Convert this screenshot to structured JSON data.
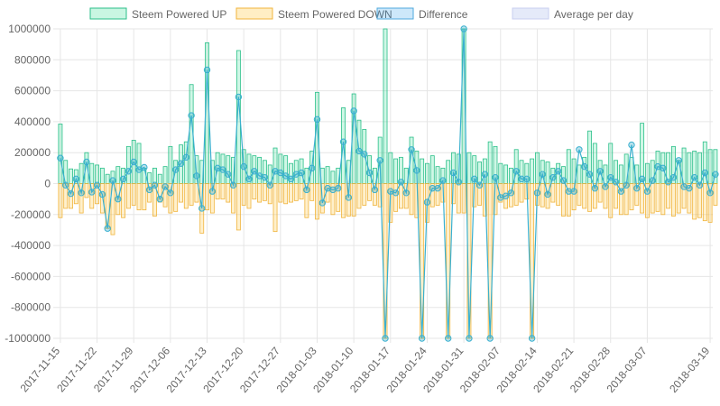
{
  "chart_data": {
    "type": "bar",
    "legend": [
      {
        "label": "Steem Powered UP",
        "fill": "rgba(38,220,140,0.25)",
        "stroke": "#2bbf89"
      },
      {
        "label": "Steem Powered DOWN",
        "fill": "rgba(255,206,86,0.35)",
        "stroke": "#f0b43c"
      },
      {
        "label": "Difference",
        "fill": "rgba(54,162,235,0.25)",
        "stroke": "#4fa9dd"
      },
      {
        "label": "Average per day",
        "fill": "rgba(153,170,230,0.25)",
        "stroke": "#c8cff0"
      }
    ],
    "ylim": [
      -1000000,
      1000000
    ],
    "yticks": [
      "1000000",
      "800000",
      "600000",
      "400000",
      "200000",
      "0",
      "-200000",
      "-400000",
      "-600000",
      "-800000",
      "-1000000"
    ],
    "xticks": [
      "2017-11-15",
      "2017-11-22",
      "2017-11-29",
      "2017-12-06",
      "2017-12-13",
      "2017-12-20",
      "2017-12-27",
      "2018-01-03",
      "2018-01-10",
      "2018-01-17",
      "2018-01-24",
      "2018-01-31",
      "2018-02-07",
      "2018-02-14",
      "2018-02-21",
      "2018-02-28",
      "2018-03-07",
      "2018-03-19"
    ],
    "grid": true,
    "legend_position": "top",
    "colors": {
      "up": "#2bbf89",
      "down": "#f0b43c",
      "diff": "#3ab0cf",
      "avg": "#c8cff0",
      "grid": "#e6e6e6"
    },
    "days": [
      "2017-11-15",
      "2017-11-16",
      "2017-11-17",
      "2017-11-18",
      "2017-11-19",
      "2017-11-20",
      "2017-11-21",
      "2017-11-22",
      "2017-11-23",
      "2017-11-24",
      "2017-11-25",
      "2017-11-26",
      "2017-11-27",
      "2017-11-28",
      "2017-11-29",
      "2017-11-30",
      "2017-12-01",
      "2017-12-02",
      "2017-12-03",
      "2017-12-04",
      "2017-12-05",
      "2017-12-06",
      "2017-12-07",
      "2017-12-08",
      "2017-12-09",
      "2017-12-10",
      "2017-12-11",
      "2017-12-12",
      "2017-12-13",
      "2017-12-14",
      "2017-12-15",
      "2017-12-16",
      "2017-12-17",
      "2017-12-18",
      "2017-12-19",
      "2017-12-20",
      "2017-12-21",
      "2017-12-22",
      "2017-12-23",
      "2017-12-24",
      "2017-12-25",
      "2017-12-26",
      "2017-12-27",
      "2017-12-28",
      "2017-12-29",
      "2017-12-30",
      "2017-12-31",
      "2018-01-01",
      "2018-01-02",
      "2018-01-03",
      "2018-01-04",
      "2018-01-05",
      "2018-01-06",
      "2018-01-07",
      "2018-01-08",
      "2018-01-09",
      "2018-01-10",
      "2018-01-11",
      "2018-01-12",
      "2018-01-13",
      "2018-01-14",
      "2018-01-15",
      "2018-01-16",
      "2018-01-17",
      "2018-01-18",
      "2018-01-19",
      "2018-01-20",
      "2018-01-21",
      "2018-01-22",
      "2018-01-23",
      "2018-01-24",
      "2018-01-25",
      "2018-01-26",
      "2018-01-27",
      "2018-01-28",
      "2018-01-29",
      "2018-01-30",
      "2018-01-31",
      "2018-02-01",
      "2018-02-02",
      "2018-02-03",
      "2018-02-04",
      "2018-02-05",
      "2018-02-06",
      "2018-02-07",
      "2018-02-08",
      "2018-02-09",
      "2018-02-10",
      "2018-02-11",
      "2018-02-12",
      "2018-02-13",
      "2018-02-14",
      "2018-02-15",
      "2018-02-16",
      "2018-02-17",
      "2018-02-18",
      "2018-02-19",
      "2018-02-20",
      "2018-02-21",
      "2018-02-22",
      "2018-02-23",
      "2018-02-24",
      "2018-02-25",
      "2018-02-26",
      "2018-02-27",
      "2018-02-28",
      "2018-03-01",
      "2018-03-02",
      "2018-03-03",
      "2018-03-04",
      "2018-03-05",
      "2018-03-06",
      "2018-03-07",
      "2018-03-08",
      "2018-03-09",
      "2018-03-10",
      "2018-03-11",
      "2018-03-12",
      "2018-03-13",
      "2018-03-14",
      "2018-03-15",
      "2018-03-16",
      "2018-03-17",
      "2018-03-18",
      "2018-03-19"
    ],
    "up": [
      385000,
      150000,
      95000,
      90000,
      130000,
      200000,
      130000,
      120000,
      100000,
      60000,
      80000,
      110000,
      100000,
      240000,
      280000,
      260000,
      100000,
      70000,
      100000,
      60000,
      110000,
      240000,
      150000,
      250000,
      270000,
      640000,
      180000,
      150000,
      910000,
      150000,
      200000,
      190000,
      180000,
      170000,
      860000,
      220000,
      190000,
      180000,
      170000,
      150000,
      120000,
      230000,
      190000,
      180000,
      130000,
      150000,
      160000,
      100000,
      210000,
      590000,
      100000,
      110000,
      80000,
      100000,
      490000,
      150000,
      580000,
      410000,
      350000,
      180000,
      100000,
      300000,
      1000000,
      200000,
      160000,
      170000,
      100000,
      300000,
      210000,
      160000,
      130000,
      180000,
      110000,
      100000,
      150000,
      200000,
      190000,
      1000000,
      200000,
      180000,
      140000,
      160000,
      270000,
      240000,
      130000,
      120000,
      100000,
      220000,
      150000,
      130000,
      160000,
      200000,
      150000,
      140000,
      100000,
      130000,
      110000,
      220000,
      160000,
      120000,
      170000,
      340000,
      260000,
      150000,
      120000,
      260000,
      150000,
      120000,
      190000,
      170000,
      120000,
      390000,
      130000,
      150000,
      210000,
      200000,
      200000,
      240000,
      150000,
      230000,
      200000,
      210000,
      200000,
      270000,
      220000,
      220000
    ],
    "down": [
      -220000,
      -160000,
      -160000,
      -130000,
      -190000,
      -90000,
      -160000,
      -130000,
      -190000,
      -290000,
      -330000,
      -200000,
      -220000,
      -160000,
      -140000,
      -170000,
      -170000,
      -120000,
      -210000,
      -120000,
      -150000,
      -190000,
      -180000,
      -120000,
      -160000,
      -140000,
      -120000,
      -320000,
      -170000,
      -190000,
      -100000,
      -100000,
      -120000,
      -190000,
      -300000,
      -140000,
      -160000,
      -100000,
      -120000,
      -110000,
      -130000,
      -310000,
      -120000,
      -130000,
      -120000,
      -110000,
      -100000,
      -220000,
      -110000,
      -230000,
      -190000,
      -120000,
      -200000,
      -180000,
      -220000,
      -210000,
      -210000,
      -160000,
      -140000,
      -110000,
      -140000,
      -150000,
      -1000000,
      -250000,
      -180000,
      -160000,
      -160000,
      -200000,
      -220000,
      -1000000,
      -250000,
      -150000,
      -140000,
      -120000,
      -1000000,
      -130000,
      -190000,
      -190000,
      -1000000,
      -150000,
      -140000,
      -210000,
      -1000000,
      -200000,
      -120000,
      -160000,
      -150000,
      -140000,
      -120000,
      -100000,
      -1000000,
      -140000,
      -150000,
      -160000,
      -120000,
      -140000,
      -210000,
      -210000,
      -170000,
      -140000,
      -160000,
      -180000,
      -160000,
      -120000,
      -160000,
      -220000,
      -160000,
      -200000,
      -200000,
      -170000,
      -140000,
      -190000,
      -220000,
      -190000,
      -180000,
      -200000,
      -160000,
      -210000,
      -190000,
      -160000,
      -190000,
      -230000,
      -220000,
      -240000,
      -250000,
      -140000
    ],
    "diff": [
      165000,
      -10000,
      -65000,
      30000,
      -60000,
      140000,
      -55000,
      -10000,
      -70000,
      -290000,
      20000,
      -100000,
      30000,
      80000,
      140000,
      90000,
      105000,
      -40000,
      -10000,
      -100000,
      -20000,
      -60000,
      90000,
      130000,
      170000,
      440000,
      50000,
      -160000,
      735000,
      -50000,
      100000,
      90000,
      60000,
      -10000,
      560000,
      110000,
      30000,
      80000,
      50000,
      40000,
      -10000,
      80000,
      70000,
      50000,
      30000,
      60000,
      70000,
      -40000,
      100000,
      415000,
      -125000,
      -30000,
      -40000,
      -30000,
      270000,
      -90000,
      470000,
      210000,
      190000,
      70000,
      -40000,
      150000,
      -1000000,
      -50000,
      -60000,
      10000,
      -60000,
      220000,
      85000,
      -1000000,
      -120000,
      -30000,
      -30000,
      20000,
      -1000000,
      70000,
      10000,
      1000000,
      -1000000,
      30000,
      -10000,
      60000,
      -1000000,
      40000,
      -90000,
      -80000,
      -60000,
      80000,
      30000,
      30000,
      -1000000,
      -60000,
      60000,
      -70000,
      40000,
      80000,
      20000,
      -50000,
      -50000,
      220000,
      110000,
      60000,
      -30000,
      80000,
      -20000,
      40000,
      10000,
      -50000,
      -10000,
      250000,
      -30000,
      30000,
      -50000,
      20000,
      110000,
      100000,
      10000,
      40000,
      150000,
      -20000,
      -30000,
      40000,
      -10000,
      70000,
      -60000,
      60000
    ]
  }
}
